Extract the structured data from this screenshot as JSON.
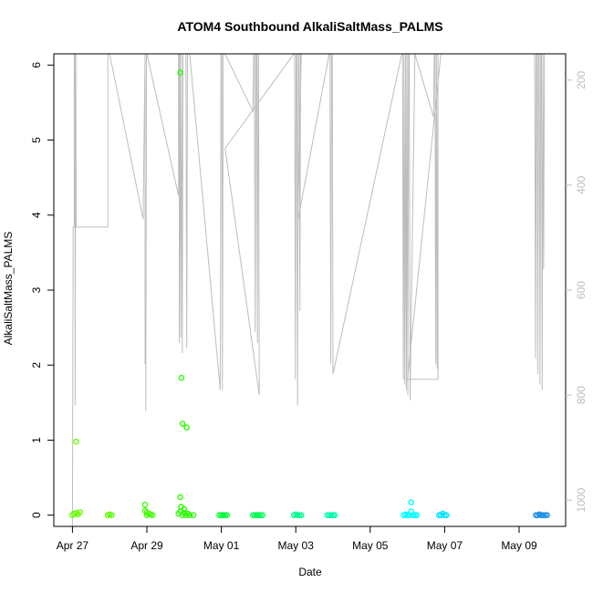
{
  "chart_data": {
    "type": "scatter",
    "title": "ATOM4 Southbound AlkaliSaltMass_PALMS",
    "xlabel": "Date",
    "ylabel": "AlkaliSaltMass_PALMS",
    "x_ticks": [
      "Apr 27",
      "Apr 29",
      "May 01",
      "May 03",
      "May 05",
      "May 07",
      "May 09"
    ],
    "x_tick_days": [
      0,
      2,
      4,
      6,
      8,
      10,
      12
    ],
    "xlim": [
      -0.5,
      13.25
    ],
    "ylim": [
      -0.15,
      6.15
    ],
    "y_ticks": [
      0,
      1,
      2,
      3,
      4,
      5,
      6
    ],
    "y2_ticks": [
      200,
      400,
      600,
      800,
      1000
    ],
    "y2lim": [
      1050,
      150
    ],
    "y2_color": "#bdbdbd",
    "points": [
      {
        "x": 0.0,
        "y": 0.0,
        "c": "#66ff00"
      },
      {
        "x": 0.05,
        "y": 0.02,
        "c": "#66ff00"
      },
      {
        "x": 0.1,
        "y": 0.03,
        "c": "#66ff00"
      },
      {
        "x": 0.15,
        "y": 0.01,
        "c": "#66ff00"
      },
      {
        "x": 0.2,
        "y": 0.04,
        "c": "#66ff00"
      },
      {
        "x": 0.1,
        "y": 0.98,
        "c": "#66ff00"
      },
      {
        "x": 0.95,
        "y": 0.0,
        "c": "#5cff00"
      },
      {
        "x": 1.0,
        "y": 0.01,
        "c": "#5cff00"
      },
      {
        "x": 1.05,
        "y": 0.0,
        "c": "#5cff00"
      },
      {
        "x": 1.95,
        "y": 0.14,
        "c": "#40ff00"
      },
      {
        "x": 1.95,
        "y": 0.06,
        "c": "#40ff00"
      },
      {
        "x": 2.0,
        "y": 0.04,
        "c": "#40ff00"
      },
      {
        "x": 2.0,
        "y": 0.0,
        "c": "#40ff00"
      },
      {
        "x": 2.05,
        "y": 0.02,
        "c": "#40ff00"
      },
      {
        "x": 2.1,
        "y": 0.01,
        "c": "#40ff00"
      },
      {
        "x": 2.15,
        "y": 0.0,
        "c": "#40ff00"
      },
      {
        "x": 2.85,
        "y": 0.02,
        "c": "#2aff00"
      },
      {
        "x": 2.9,
        "y": 0.05,
        "c": "#2aff00"
      },
      {
        "x": 2.95,
        "y": 0.0,
        "c": "#2aff00"
      },
      {
        "x": 3.0,
        "y": 0.03,
        "c": "#2aff00"
      },
      {
        "x": 3.05,
        "y": 0.0,
        "c": "#2aff00"
      },
      {
        "x": 3.1,
        "y": 0.02,
        "c": "#2aff00"
      },
      {
        "x": 3.15,
        "y": 0.0,
        "c": "#2aff00"
      },
      {
        "x": 3.25,
        "y": 0.0,
        "c": "#2aff00"
      },
      {
        "x": 2.9,
        "y": 5.9,
        "c": "#2aff00"
      },
      {
        "x": 2.93,
        "y": 1.83,
        "c": "#2aff00"
      },
      {
        "x": 2.96,
        "y": 1.22,
        "c": "#2aff00"
      },
      {
        "x": 3.07,
        "y": 1.17,
        "c": "#2aff00"
      },
      {
        "x": 2.9,
        "y": 0.24,
        "c": "#2aff00"
      },
      {
        "x": 2.92,
        "y": 0.11,
        "c": "#2aff00"
      },
      {
        "x": 3.0,
        "y": 0.08,
        "c": "#2aff00"
      },
      {
        "x": 3.95,
        "y": 0.0,
        "c": "#00ff3a"
      },
      {
        "x": 4.0,
        "y": 0.0,
        "c": "#00ff3a"
      },
      {
        "x": 4.05,
        "y": 0.0,
        "c": "#00ff3a"
      },
      {
        "x": 4.1,
        "y": 0.0,
        "c": "#00ff3a"
      },
      {
        "x": 4.15,
        "y": 0.0,
        "c": "#00ff3a"
      },
      {
        "x": 4.85,
        "y": 0.0,
        "c": "#00ff55"
      },
      {
        "x": 4.9,
        "y": 0.0,
        "c": "#00ff55"
      },
      {
        "x": 4.95,
        "y": 0.0,
        "c": "#00ff55"
      },
      {
        "x": 5.0,
        "y": 0.0,
        "c": "#00ff55"
      },
      {
        "x": 5.05,
        "y": 0.0,
        "c": "#00ff55"
      },
      {
        "x": 5.1,
        "y": 0.0,
        "c": "#00ff55"
      },
      {
        "x": 5.95,
        "y": 0.0,
        "c": "#00ff90"
      },
      {
        "x": 6.0,
        "y": 0.01,
        "c": "#00ff90"
      },
      {
        "x": 6.05,
        "y": 0.0,
        "c": "#00ff90"
      },
      {
        "x": 6.1,
        "y": 0.0,
        "c": "#00ff90"
      },
      {
        "x": 6.15,
        "y": 0.0,
        "c": "#00ff90"
      },
      {
        "x": 6.85,
        "y": 0.0,
        "c": "#00ffb0"
      },
      {
        "x": 6.9,
        "y": 0.0,
        "c": "#00ffb0"
      },
      {
        "x": 6.95,
        "y": 0.0,
        "c": "#00ffb0"
      },
      {
        "x": 7.0,
        "y": 0.0,
        "c": "#00ffb0"
      },
      {
        "x": 7.05,
        "y": 0.0,
        "c": "#00ffb0"
      },
      {
        "x": 8.9,
        "y": 0.0,
        "c": "#00ffff"
      },
      {
        "x": 8.95,
        "y": 0.01,
        "c": "#00ffff"
      },
      {
        "x": 9.0,
        "y": 0.0,
        "c": "#00ffff"
      },
      {
        "x": 9.05,
        "y": 0.0,
        "c": "#00ffff"
      },
      {
        "x": 9.1,
        "y": 0.17,
        "c": "#00ffff"
      },
      {
        "x": 9.1,
        "y": 0.05,
        "c": "#00ffff"
      },
      {
        "x": 9.15,
        "y": 0.0,
        "c": "#00ffff"
      },
      {
        "x": 9.2,
        "y": 0.0,
        "c": "#00ffff"
      },
      {
        "x": 9.25,
        "y": 0.0,
        "c": "#00ffff"
      },
      {
        "x": 9.85,
        "y": 0.0,
        "c": "#00e5ff"
      },
      {
        "x": 9.9,
        "y": 0.0,
        "c": "#00e5ff"
      },
      {
        "x": 9.95,
        "y": 0.02,
        "c": "#00e5ff"
      },
      {
        "x": 10.0,
        "y": 0.0,
        "c": "#00e5ff"
      },
      {
        "x": 10.05,
        "y": 0.0,
        "c": "#00e5ff"
      },
      {
        "x": 12.45,
        "y": 0.0,
        "c": "#1e90e6"
      },
      {
        "x": 12.5,
        "y": 0.0,
        "c": "#1e90e6"
      },
      {
        "x": 12.55,
        "y": 0.01,
        "c": "#1e90e6"
      },
      {
        "x": 12.6,
        "y": 0.0,
        "c": "#1e90e6"
      },
      {
        "x": 12.65,
        "y": 0.0,
        "c": "#1e90e6"
      },
      {
        "x": 12.7,
        "y": 0.0,
        "c": "#1e90e6"
      },
      {
        "x": 12.75,
        "y": 0.0,
        "c": "#1e90e6"
      }
    ],
    "pressure_track": [
      [
        0.0,
        1050
      ],
      [
        0.02,
        480
      ],
      [
        0.05,
        480
      ],
      [
        0.05,
        150
      ],
      [
        0.07,
        150
      ],
      [
        0.07,
        820
      ],
      [
        0.09,
        150
      ],
      [
        0.1,
        480
      ],
      [
        0.95,
        480
      ],
      [
        0.95,
        150
      ],
      [
        1.0,
        150
      ],
      [
        1.9,
        465
      ],
      [
        1.95,
        150
      ],
      [
        1.95,
        740
      ],
      [
        1.97,
        740
      ],
      [
        1.97,
        830
      ],
      [
        1.99,
        150
      ],
      [
        2.0,
        150
      ],
      [
        2.85,
        420
      ],
      [
        2.85,
        150
      ],
      [
        2.87,
        150
      ],
      [
        2.87,
        700
      ],
      [
        2.89,
        150
      ],
      [
        2.91,
        690
      ],
      [
        2.93,
        150
      ],
      [
        2.95,
        720
      ],
      [
        2.97,
        150
      ],
      [
        2.99,
        150
      ],
      [
        3.05,
        150
      ],
      [
        3.07,
        710
      ],
      [
        3.09,
        150
      ],
      [
        3.11,
        150
      ],
      [
        3.15,
        150
      ],
      [
        3.97,
        790
      ],
      [
        3.99,
        150
      ],
      [
        4.01,
        150
      ],
      [
        4.03,
        790
      ],
      [
        4.05,
        150
      ],
      [
        4.1,
        150
      ],
      [
        4.85,
        260
      ],
      [
        4.87,
        150
      ],
      [
        4.89,
        150
      ],
      [
        4.91,
        680
      ],
      [
        4.93,
        150
      ],
      [
        4.95,
        150
      ],
      [
        4.97,
        700
      ],
      [
        4.99,
        150
      ],
      [
        5.0,
        150
      ],
      [
        5.02,
        800
      ],
      [
        4.1,
        330
      ],
      [
        5.95,
        150
      ],
      [
        5.97,
        150
      ],
      [
        5.99,
        770
      ],
      [
        6.01,
        150
      ],
      [
        6.03,
        150
      ],
      [
        6.05,
        820
      ],
      [
        6.07,
        150
      ],
      [
        6.09,
        150
      ],
      [
        6.11,
        640
      ],
      [
        6.13,
        150
      ],
      [
        6.15,
        150
      ],
      [
        6.05,
        470
      ],
      [
        6.9,
        150
      ],
      [
        6.92,
        150
      ],
      [
        6.94,
        740
      ],
      [
        6.96,
        150
      ],
      [
        6.98,
        150
      ],
      [
        7.0,
        760
      ],
      [
        8.85,
        150
      ],
      [
        8.87,
        150
      ],
      [
        8.89,
        770
      ],
      [
        8.91,
        150
      ],
      [
        8.93,
        780
      ],
      [
        8.95,
        150
      ],
      [
        8.97,
        790
      ],
      [
        8.99,
        150
      ],
      [
        9.01,
        800
      ],
      [
        9.03,
        150
      ],
      [
        9.05,
        150
      ],
      [
        9.07,
        810
      ],
      [
        9.2,
        150
      ],
      [
        9.7,
        270
      ],
      [
        9.72,
        150
      ],
      [
        9.74,
        150
      ],
      [
        9.76,
        740
      ],
      [
        9.78,
        150
      ],
      [
        9.8,
        750
      ],
      [
        9.82,
        150
      ],
      [
        9.82,
        770
      ],
      [
        9.0,
        770
      ],
      [
        9.9,
        150
      ],
      [
        12.4,
        150
      ],
      [
        12.42,
        150
      ],
      [
        12.44,
        730
      ],
      [
        12.46,
        150
      ],
      [
        12.48,
        150
      ],
      [
        12.5,
        760
      ],
      [
        12.52,
        150
      ],
      [
        12.54,
        150
      ],
      [
        12.56,
        780
      ],
      [
        12.58,
        150
      ],
      [
        12.6,
        150
      ],
      [
        12.62,
        790
      ],
      [
        12.64,
        150
      ],
      [
        12.66,
        560
      ],
      [
        12.68,
        150
      ]
    ],
    "grid": false,
    "legend": false
  }
}
